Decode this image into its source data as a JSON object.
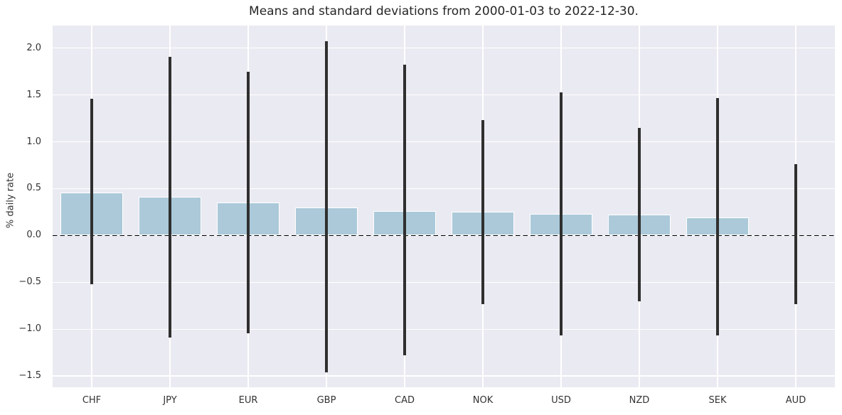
{
  "chart_data": {
    "type": "bar",
    "title": "Means and standard deviations from 2000-01-03 to 2022-12-30.",
    "xlabel": "",
    "ylabel": "% daily rate",
    "categories": [
      "CHF",
      "JPY",
      "EUR",
      "GBP",
      "CAD",
      "NOK",
      "USD",
      "NZD",
      "SEK",
      "AUD"
    ],
    "series": [
      {
        "name": "mean",
        "values": [
          0.46,
          0.41,
          0.35,
          0.3,
          0.26,
          0.25,
          0.23,
          0.22,
          0.19,
          0.01
        ]
      },
      {
        "name": "std_dev",
        "values": [
          0.99,
          1.5,
          1.4,
          1.77,
          1.55,
          0.98,
          1.3,
          0.93,
          1.27,
          0.75
        ]
      }
    ],
    "error_bar_top": [
      1.46,
      1.91,
      1.75,
      2.07,
      1.82,
      1.23,
      1.53,
      1.15,
      1.47,
      0.76
    ],
    "error_bar_bottom": [
      -0.52,
      -1.09,
      -1.04,
      -1.46,
      -1.28,
      -0.73,
      -1.07,
      -0.7,
      -1.07,
      -0.73
    ],
    "yticks": {
      "values": [
        2.0,
        1.5,
        1.0,
        0.5,
        0.0,
        -0.5,
        -1.0,
        -1.5
      ],
      "labels": [
        "2.0",
        "1.5",
        "1.0",
        "0.5",
        "0.0",
        "−0.5",
        "−1.0",
        "−1.5"
      ]
    },
    "ylim": [
      -1.62,
      2.24
    ],
    "grid": true,
    "legend": "none",
    "zero_line": {
      "style": "dashed",
      "value": 0.0
    },
    "colors": {
      "bar_fill": "#abc9d9",
      "bar_edge": "#ffffff",
      "error_bar": "#2f2f2f",
      "zero_line": "#000000",
      "plot_background": "#eaeaf2",
      "grid": "#ffffff",
      "tick_text": "#333333",
      "title_text": "#262626"
    }
  }
}
